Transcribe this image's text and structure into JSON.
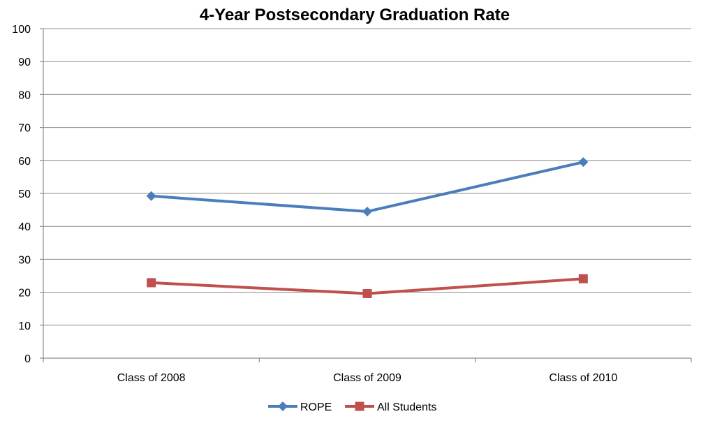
{
  "chart_data": {
    "type": "line",
    "title": "4-Year Postsecondary Graduation Rate",
    "xlabel": "",
    "ylabel": "",
    "categories": [
      "Class of 2008",
      "Class of 2009",
      "Class of 2010"
    ],
    "series": [
      {
        "name": "ROPE",
        "values": [
          49.2,
          44.5,
          59.5
        ],
        "color": "#4a7ebb",
        "marker": "diamond"
      },
      {
        "name": "All Students",
        "values": [
          22.9,
          19.6,
          24.1
        ],
        "color": "#c0504d",
        "marker": "square"
      }
    ],
    "ylim": [
      0,
      100
    ],
    "y_ticks": [
      "0",
      "10",
      "20",
      "30",
      "40",
      "50",
      "60",
      "70",
      "80",
      "90",
      "100"
    ],
    "grid": true,
    "legend_position": "bottom"
  }
}
